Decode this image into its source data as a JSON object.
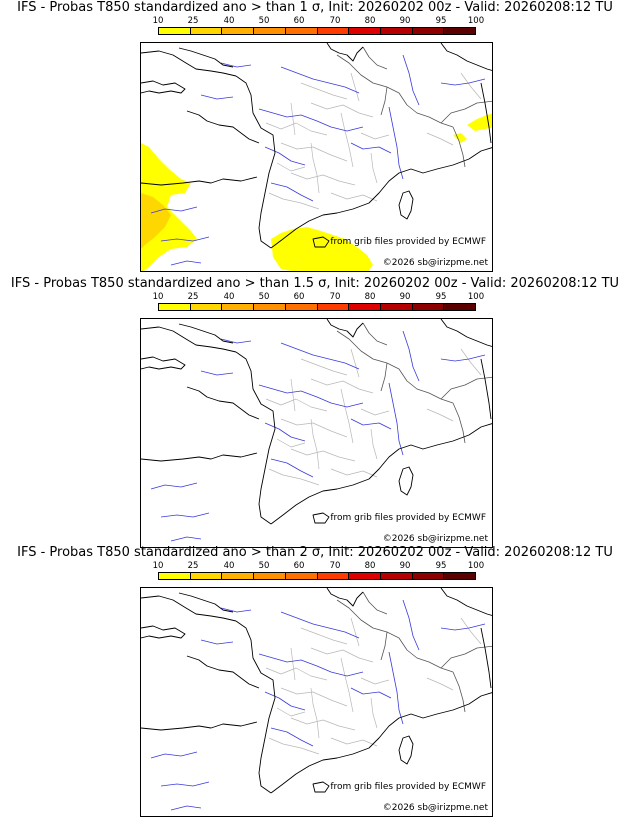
{
  "credits": {
    "source": "from grib files provided by ECMWF",
    "copyright": "©2026 sb@irizpme.net"
  },
  "colorbar": {
    "ticks": [
      "10",
      "25",
      "40",
      "50",
      "60",
      "70",
      "80",
      "90",
      "95",
      "100"
    ],
    "colors": [
      "#ffff00",
      "#ffd700",
      "#ffb000",
      "#ff9000",
      "#ff7000",
      "#ff3c00",
      "#dc0000",
      "#b40000",
      "#8c0000",
      "#5a0000"
    ]
  },
  "panels": [
    {
      "title": "IFS - Probas T850  standardized ano > than 1 σ, Init: 20260202 00z - Valid: 20260208:12 TU",
      "has_anomaly": true
    },
    {
      "title": "IFS - Probas T850  standardized ano > than 1.5 σ, Init: 20260202 00z - Valid: 20260208:12 TU",
      "has_anomaly": false
    },
    {
      "title": "IFS - Probas T850  standardized ano > than 2 σ, Init: 20260202 00z - Valid: 20260208:12 TU",
      "has_anomaly": false
    }
  ]
}
